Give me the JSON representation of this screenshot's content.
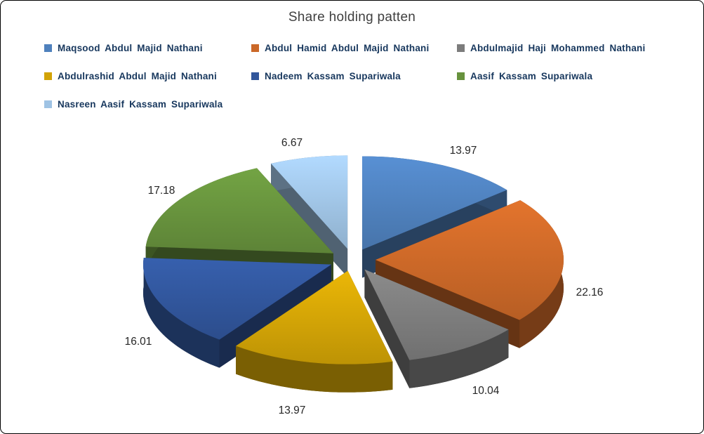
{
  "theme": {
    "background": "#ffffff",
    "border": "#000000",
    "title_text": "#3f3f3f",
    "legend_text": "#17375d",
    "value_text": "#262626"
  },
  "chart_data": {
    "type": "pie",
    "style": "3d-exploded",
    "title": "Share holding patten",
    "labels": [
      "Maqsood Abdul Majid Nathani",
      "Abdul Hamid Abdul Majid Nathani",
      "Abdulmajid Haji Mohammed Nathani",
      "Abdulrashid Abdul Majid Nathani",
      "Nadeem Kassam Supariwala",
      "Aasif Kassam Supariwala",
      "Nasreen Aasif Kassam Supariwala"
    ],
    "values": [
      13.97,
      22.16,
      10.04,
      13.97,
      16.01,
      17.18,
      6.67
    ],
    "value_labels": [
      "13.97",
      "22.16",
      "10.04",
      "13.97",
      "16.01",
      "17.18",
      "6.67"
    ],
    "colors": [
      "#4f81bd",
      "#cb6828",
      "#7c7c7c",
      "#d2a306",
      "#31569b",
      "#67923d",
      "#9fc3e4"
    ],
    "start_angle_deg": 0,
    "direction": "clockwise",
    "legend_position": "top",
    "legend_columns": 3
  }
}
